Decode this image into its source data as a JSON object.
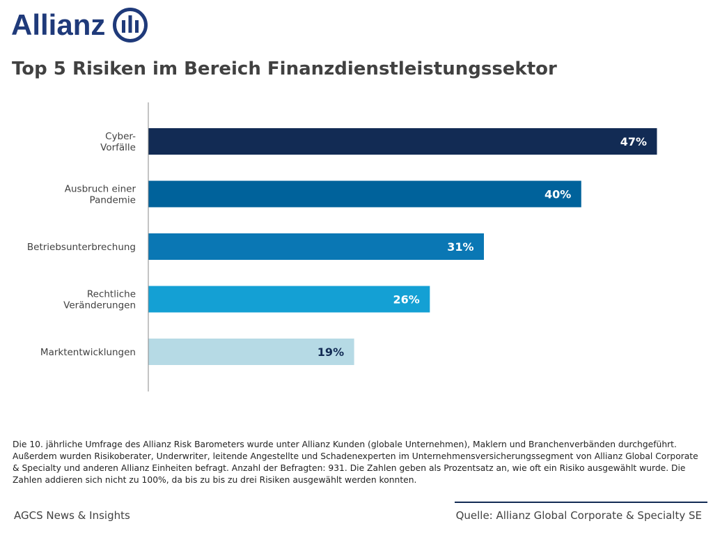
{
  "logo": {
    "text": "Allianz",
    "color": "#1F3A7A"
  },
  "title": "Top 5 Risiken im Bereich Finanzdienstleistungssektor",
  "chart_data": {
    "type": "bar",
    "orientation": "horizontal",
    "categories": [
      [
        "Cyber-",
        "Vorfälle"
      ],
      [
        "Ausbruch einer",
        "Pandemie"
      ],
      [
        "Betriebsunterbrechung"
      ],
      [
        "Rechtliche",
        "Veränderungen"
      ],
      [
        "Marktentwicklungen"
      ]
    ],
    "values": [
      47,
      40,
      31,
      26,
      19
    ],
    "labels": [
      "47%",
      "40%",
      "31%",
      "26%",
      "19%"
    ],
    "colors": [
      "#122B54",
      "#00629B",
      "#0A77B4",
      "#14A0D4",
      "#B6DAE5"
    ],
    "label_colors": [
      "#FFFFFF",
      "#FFFFFF",
      "#FFFFFF",
      "#FFFFFF",
      "#122B54"
    ],
    "xlim": [
      0,
      50
    ],
    "grid": false
  },
  "footnote": "Die 10. jährliche Umfrage des Allianz Risk Barometers wurde unter Allianz Kunden (globale Unternehmen), Maklern und Branchenverbänden durchgeführt. Außerdem wurden Risikoberater, Underwriter, leitende Angestellte und Schadenexperten im Unternehmensversicherungssegment von Allianz Global Corporate & Specialty und anderen Allianz Einheiten befragt. Anzahl der Befragten: 931. Die Zahlen geben als Prozentsatz an, wie oft ein Risiko ausgewählt wurde. Die Zahlen addieren sich nicht zu 100%, da bis zu bis zu drei Risiken ausgewählt werden konnten.",
  "footer": {
    "left": "AGCS News & Insights",
    "right": "Quelle: Allianz Global Corporate & Specialty SE"
  }
}
